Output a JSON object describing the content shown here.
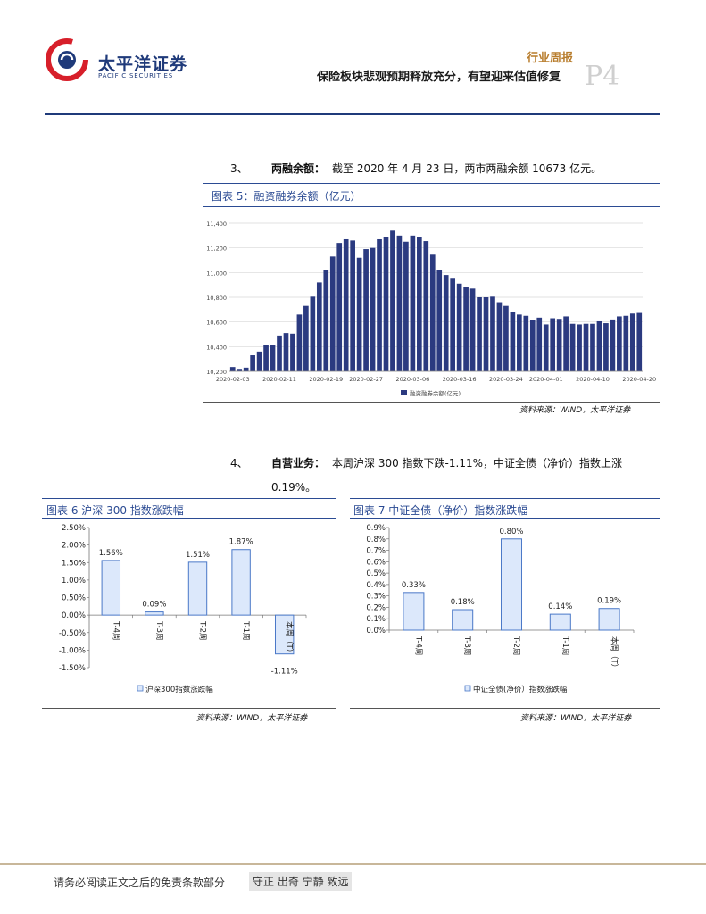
{
  "header": {
    "brand_cn": "太平洋证券",
    "brand_en": "PACIFIC SECURITIES",
    "report_type": "行业周报",
    "report_title": "保险板块悲观预期释放充分，有望迎来估值修复",
    "page": "P4"
  },
  "section3": {
    "number": "3、",
    "heading": "两融余额：",
    "text": "截至 2020 年 4 月 23 日，两市两融余额 10673 亿元。"
  },
  "section4": {
    "number": "4、",
    "heading": "自营业务：",
    "text_line1": "本周沪深 300 指数下跌-1.11%，中证全债（净价）指数上涨",
    "text_line2": "0.19%。"
  },
  "figure5": {
    "title": "图表 5：融资融券余额（亿元）",
    "source": "资料来源：WIND，太平洋证券"
  },
  "figure6": {
    "title": "图表 6  沪深 300 指数涨跌幅",
    "source": "资料来源：WIND，太平洋证券"
  },
  "figure7": {
    "title": "图表 7  中证全债（净价）指数涨跌幅",
    "source": "资料来源：WIND，太平洋证券"
  },
  "footer": {
    "disclaimer": "请务必阅读正文之后的免责条款部分",
    "motto": "守正 出奇 宁静 致远"
  },
  "colors": {
    "brand_blue": "#1f3a7a",
    "bar_dark": "#2b3a80",
    "bar_light": "#dce8fb",
    "bar_edge": "#4a78c8",
    "accent_gold": "#b87d2d"
  },
  "chart_data": [
    {
      "type": "bar",
      "title": "",
      "ylim": [
        10200,
        11400
      ],
      "yticks": [
        "10,200",
        "10,400",
        "10,600",
        "10,800",
        "11,000",
        "11,200",
        "11,400"
      ],
      "x_tick_labels": [
        "2020-02-03",
        "2020-02-11",
        "2020-02-19",
        "2020-02-27",
        "2020-03-06",
        "2020-03-16",
        "2020-03-24",
        "2020-04-01",
        "2020-04-10",
        "2020-04-20"
      ],
      "legend": "融资融券余额(亿元)",
      "series": [
        {
          "values": [
            10235,
            10220,
            10230,
            10330,
            10360,
            10415,
            10415,
            10490,
            10510,
            10505,
            10660,
            10730,
            10805,
            10920,
            11020,
            11130,
            11240,
            11270,
            11260,
            11120,
            11190,
            11200,
            11270,
            11290,
            11340,
            11300,
            11250,
            11300,
            11290,
            11255,
            11145,
            11020,
            10980,
            10950,
            10910,
            10880,
            10870,
            10800,
            10800,
            10805,
            10760,
            10730,
            10680,
            10660,
            10650,
            10615,
            10635,
            10580,
            10630,
            10625,
            10645,
            10585,
            10580,
            10585,
            10585,
            10605,
            10590,
            10620,
            10645,
            10650,
            10668,
            10673
          ]
        }
      ]
    },
    {
      "type": "bar",
      "title": "",
      "categories": [
        "T-4周",
        "T-3周",
        "T-2周",
        "T-1周",
        "本周（T）"
      ],
      "values": [
        1.56,
        0.09,
        1.51,
        1.87,
        -1.11
      ],
      "data_labels": [
        "1.56%",
        "0.09%",
        "1.51%",
        "1.87%",
        "-1.11%"
      ],
      "ylim": [
        -1.5,
        2.5
      ],
      "yticks": [
        "2.50%",
        "2.00%",
        "1.50%",
        "1.00%",
        "0.50%",
        "0.00%",
        "-0.50%",
        "-1.00%",
        "-1.50%"
      ],
      "legend": "沪深300指数涨跌幅"
    },
    {
      "type": "bar",
      "title": "",
      "categories": [
        "T-4周",
        "T-3周",
        "T-2周",
        "T-1周",
        "本周（T）"
      ],
      "values": [
        0.33,
        0.18,
        0.8,
        0.14,
        0.19
      ],
      "data_labels": [
        "0.33%",
        "0.18%",
        "0.80%",
        "0.14%",
        "0.19%"
      ],
      "ylim": [
        0,
        0.9
      ],
      "yticks": [
        "0.9%",
        "0.8%",
        "0.7%",
        "0.6%",
        "0.5%",
        "0.4%",
        "0.3%",
        "0.2%",
        "0.1%",
        "0.0%"
      ],
      "legend": "中证全债(净价）指数涨跌幅"
    }
  ]
}
